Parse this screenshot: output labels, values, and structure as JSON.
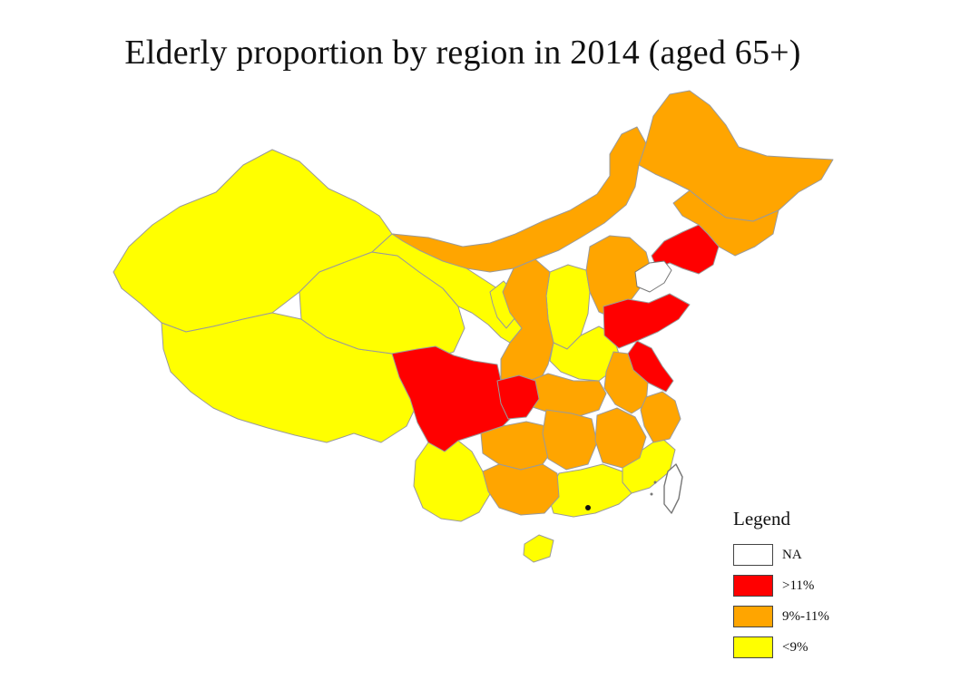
{
  "title": "Elderly proportion by region in 2014 (aged 65+)",
  "colors": {
    "red": "#ff0000",
    "orange": "#ffa500",
    "yellow": "#ffff00",
    "na": "#ffffff",
    "border": "#9a9a9a",
    "coast": "#777777"
  },
  "legend": {
    "title": "Legend",
    "items": [
      {
        "label": "NA",
        "color": "#ffffff"
      },
      {
        "label": ">11%",
        "color": "#ff0000"
      },
      {
        "label": "9%-11%",
        "color": "#ffa500"
      },
      {
        "label": "<9%",
        "color": "#ffff00"
      }
    ]
  },
  "regions": [
    {
      "name": "Xinjiang",
      "category": "<9%"
    },
    {
      "name": "Tibet",
      "category": "<9%"
    },
    {
      "name": "Qinghai",
      "category": "<9%"
    },
    {
      "name": "Gansu",
      "category": "<9%"
    },
    {
      "name": "Ningxia",
      "category": "<9%"
    },
    {
      "name": "Shanxi",
      "category": "<9%"
    },
    {
      "name": "Henan",
      "category": "<9%"
    },
    {
      "name": "Beijing",
      "category": "<9%"
    },
    {
      "name": "Yunnan",
      "category": "<9%"
    },
    {
      "name": "Guangdong",
      "category": "<9%"
    },
    {
      "name": "Fujian",
      "category": "<9%"
    },
    {
      "name": "Hainan",
      "category": "<9%"
    },
    {
      "name": "Inner Mongolia",
      "category": "9%-11%"
    },
    {
      "name": "Heilongjiang",
      "category": "9%-11%"
    },
    {
      "name": "Jilin",
      "category": "9%-11%"
    },
    {
      "name": "Hebei",
      "category": "9%-11%"
    },
    {
      "name": "Shaanxi",
      "category": "9%-11%"
    },
    {
      "name": "Hubei",
      "category": "9%-11%"
    },
    {
      "name": "Anhui",
      "category": "9%-11%"
    },
    {
      "name": "Zhejiang",
      "category": "9%-11%"
    },
    {
      "name": "Guizhou",
      "category": "9%-11%"
    },
    {
      "name": "Hunan",
      "category": "9%-11%"
    },
    {
      "name": "Jiangxi",
      "category": "9%-11%"
    },
    {
      "name": "Guangxi",
      "category": "9%-11%"
    },
    {
      "name": "Liaoning",
      "category": ">11%"
    },
    {
      "name": "Shandong",
      "category": ">11%"
    },
    {
      "name": "Jiangsu",
      "category": ">11%"
    },
    {
      "name": "Sichuan",
      "category": ">11%"
    },
    {
      "name": "Chongqing",
      "category": ">11%"
    },
    {
      "name": "Taiwan",
      "category": "NA"
    }
  ]
}
